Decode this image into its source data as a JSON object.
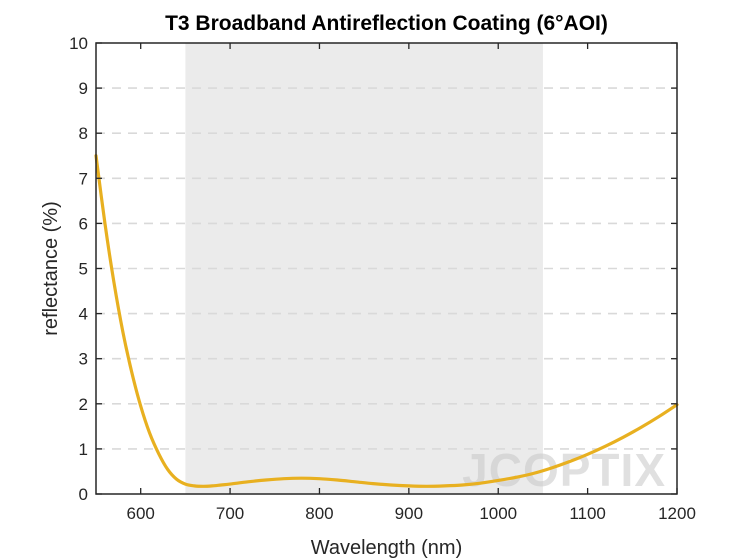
{
  "chart_data": {
    "type": "line",
    "title": "T3 Broadband Antireflection Coating (6°AOI)",
    "xlabel": "Wavelength (nm)",
    "ylabel": "reflectance (%)",
    "xlim": [
      550,
      1200
    ],
    "ylim": [
      0,
      10
    ],
    "xticks": [
      600,
      700,
      800,
      900,
      1000,
      1100,
      1200
    ],
    "yticks": [
      0,
      1,
      2,
      3,
      4,
      5,
      6,
      7,
      8,
      9,
      10
    ],
    "grid": "horizontal-dashed",
    "highlight_band": {
      "x_start": 650,
      "x_end": 1050,
      "color": "#ebebeb"
    },
    "series": [
      {
        "color": "#e8b020",
        "x": [
          550,
          560,
          570,
          580,
          590,
          600,
          610,
          620,
          630,
          640,
          650,
          660,
          670,
          680,
          690,
          700,
          720,
          740,
          760,
          780,
          800,
          820,
          840,
          860,
          880,
          900,
          920,
          940,
          960,
          980,
          1000,
          1020,
          1040,
          1060,
          1080,
          1100,
          1120,
          1140,
          1160,
          1180,
          1200
        ],
        "y": [
          7.5,
          6.0,
          4.7,
          3.6,
          2.7,
          1.95,
          1.35,
          0.9,
          0.55,
          0.33,
          0.22,
          0.18,
          0.17,
          0.18,
          0.2,
          0.22,
          0.27,
          0.31,
          0.34,
          0.35,
          0.34,
          0.31,
          0.27,
          0.23,
          0.2,
          0.18,
          0.17,
          0.18,
          0.2,
          0.24,
          0.3,
          0.37,
          0.46,
          0.58,
          0.72,
          0.88,
          1.06,
          1.26,
          1.48,
          1.72,
          1.98
        ]
      }
    ]
  },
  "watermark": {
    "text": "JCOPTIX"
  }
}
